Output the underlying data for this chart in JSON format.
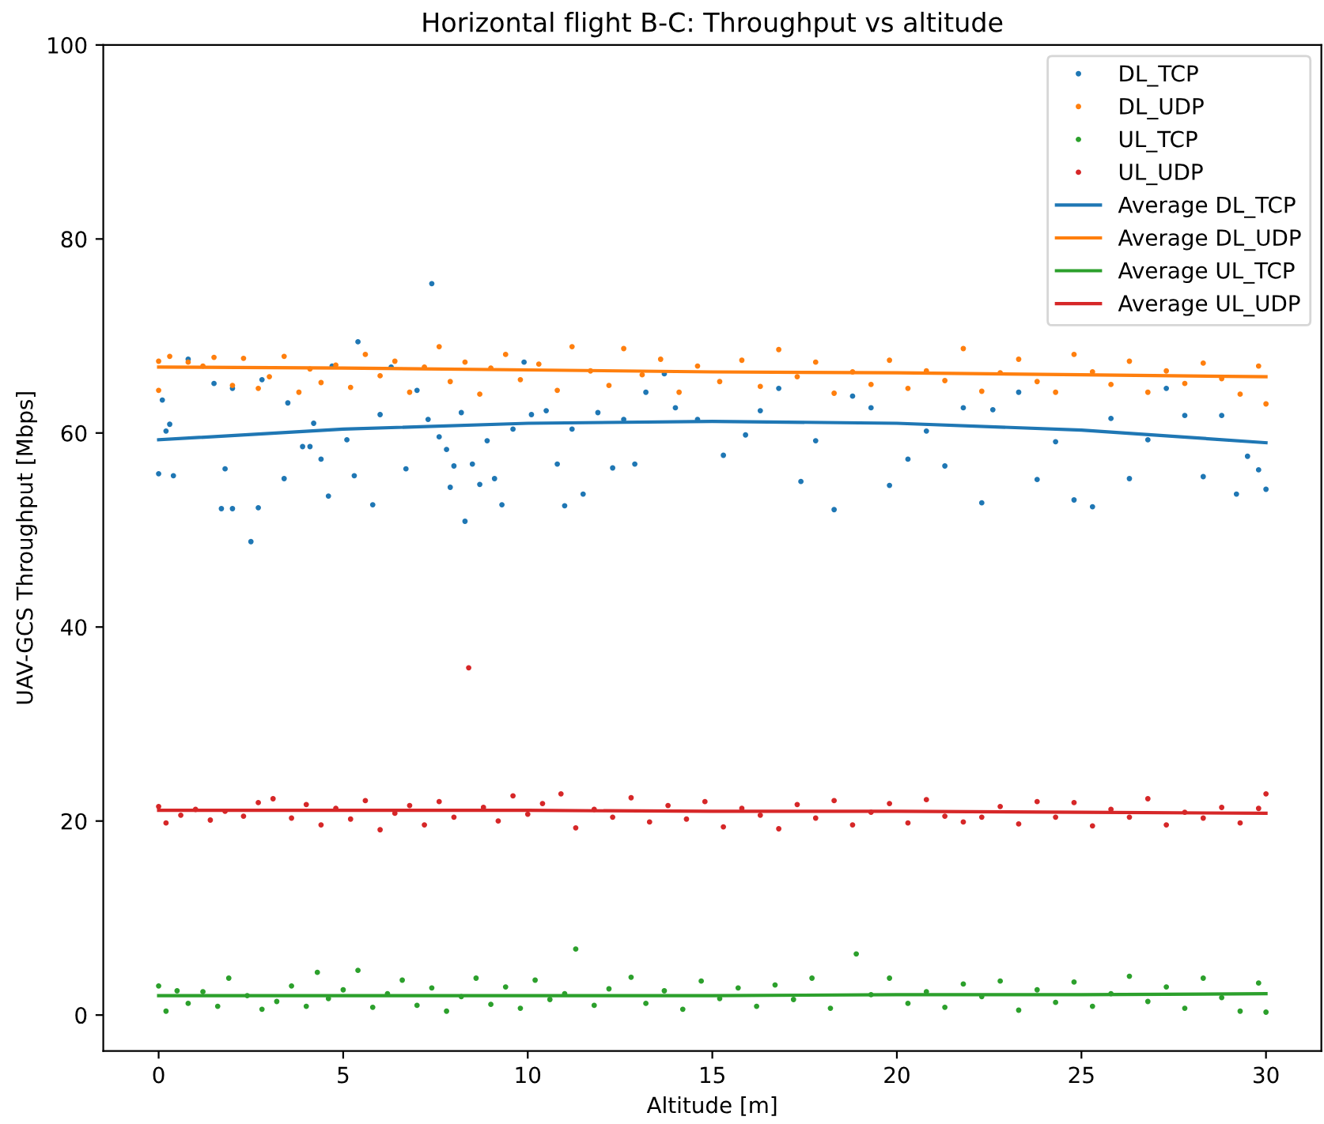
{
  "chart_data": {
    "type": "scatter",
    "title": "Horizontal flight B-C: Throughput vs altitude",
    "xlabel": "Altitude [m]",
    "ylabel": "UAV-GCS Throughput [Mbps]",
    "xlim": [
      -1.5,
      31.5
    ],
    "ylim": [
      -3.7,
      100
    ],
    "xticks": [
      0,
      5,
      10,
      15,
      20,
      25,
      30
    ],
    "yticks": [
      0,
      20,
      40,
      60,
      80,
      100
    ],
    "legend": "top right",
    "grid": false,
    "series": [
      {
        "name": "DL_TCP",
        "marker": "circle",
        "color": "#1f77b4",
        "x": [
          0,
          0.1,
          0.2,
          0.3,
          0.4,
          0.8,
          1.5,
          1.7,
          1.8,
          2.0,
          2.0,
          2.5,
          2.7,
          2.8,
          3.4,
          3.5,
          3.9,
          4.1,
          4.2,
          4.4,
          4.6,
          4.7,
          5.1,
          5.3,
          5.4,
          5.8,
          6.0,
          6.3,
          6.7,
          7.0,
          7.3,
          7.4,
          7.6,
          7.8,
          7.9,
          8.0,
          8.2,
          8.3,
          8.5,
          8.7,
          8.9,
          9.1,
          9.3,
          9.6,
          9.9,
          10.1,
          10.5,
          10.8,
          11.0,
          11.2,
          11.5,
          11.9,
          12.3,
          12.6,
          12.9,
          13.2,
          13.7,
          14.0,
          14.6,
          15.3,
          15.9,
          16.3,
          16.8,
          17.4,
          17.8,
          18.3,
          18.8,
          19.3,
          19.8,
          20.3,
          20.8,
          21.3,
          21.8,
          22.3,
          22.6,
          23.3,
          23.8,
          24.3,
          24.8,
          25.3,
          25.8,
          26.3,
          26.8,
          27.3,
          27.8,
          28.3,
          28.8,
          29.2,
          29.5,
          29.8,
          30.0
        ],
        "values": [
          55.8,
          63.4,
          60.2,
          60.9,
          55.6,
          67.6,
          65.1,
          52.2,
          56.3,
          52.2,
          64.6,
          48.8,
          52.3,
          65.5,
          55.3,
          63.1,
          58.6,
          58.6,
          61.0,
          57.3,
          53.5,
          66.9,
          59.3,
          55.6,
          69.4,
          52.6,
          61.9,
          66.8,
          56.3,
          64.4,
          61.4,
          75.4,
          59.6,
          58.3,
          54.4,
          56.6,
          62.1,
          50.9,
          56.8,
          54.7,
          59.2,
          55.3,
          52.6,
          60.4,
          67.3,
          61.9,
          62.3,
          56.8,
          52.5,
          60.4,
          53.7,
          62.1,
          56.4,
          61.4,
          56.8,
          64.2,
          66.1,
          62.6,
          61.4,
          57.7,
          59.8,
          62.3,
          64.6,
          55.0,
          59.2,
          52.1,
          63.8,
          62.6,
          54.6,
          57.3,
          60.2,
          56.6,
          62.6,
          52.8,
          62.4,
          64.2,
          55.2,
          59.1,
          53.1,
          52.4,
          61.5,
          55.3,
          59.3,
          64.6,
          61.8,
          55.5,
          61.8,
          53.7,
          57.6,
          56.2,
          54.2
        ]
      },
      {
        "name": "DL_UDP",
        "marker": "circle",
        "color": "#ff7f0e",
        "x": [
          0,
          0,
          0.3,
          0.8,
          1.2,
          1.5,
          2.0,
          2.3,
          2.7,
          3.0,
          3.4,
          3.8,
          4.1,
          4.4,
          4.8,
          5.2,
          5.6,
          6.0,
          6.4,
          6.8,
          7.2,
          7.6,
          7.9,
          8.3,
          8.7,
          9.0,
          9.4,
          9.8,
          10.3,
          10.8,
          11.2,
          11.7,
          12.2,
          12.6,
          13.1,
          13.6,
          14.1,
          14.6,
          15.2,
          15.8,
          16.3,
          16.8,
          17.3,
          17.8,
          18.3,
          18.8,
          19.3,
          19.8,
          20.3,
          20.8,
          21.3,
          21.8,
          22.3,
          22.8,
          23.3,
          23.8,
          24.3,
          24.8,
          25.3,
          25.8,
          26.3,
          26.8,
          27.3,
          27.8,
          28.3,
          28.8,
          29.3,
          29.8,
          30.0
        ],
        "values": [
          67.4,
          64.4,
          67.9,
          67.3,
          66.9,
          67.8,
          64.9,
          67.7,
          64.6,
          65.8,
          67.9,
          64.2,
          66.6,
          65.2,
          67.0,
          64.7,
          68.1,
          65.9,
          67.4,
          64.2,
          66.8,
          68.9,
          65.3,
          67.3,
          64.0,
          66.7,
          68.1,
          65.5,
          67.1,
          64.4,
          68.9,
          66.4,
          64.9,
          68.7,
          66.0,
          67.6,
          64.2,
          66.9,
          65.3,
          67.5,
          64.8,
          68.6,
          65.8,
          67.3,
          64.1,
          66.3,
          65.0,
          67.5,
          64.6,
          66.4,
          65.4,
          68.7,
          64.3,
          66.2,
          67.6,
          65.3,
          64.2,
          68.1,
          66.3,
          65.0,
          67.4,
          64.2,
          66.4,
          65.1,
          67.2,
          65.6,
          64.0,
          66.9,
          63.0
        ]
      },
      {
        "name": "UL_TCP",
        "marker": "circle",
        "color": "#2ca02c",
        "x": [
          0,
          0.2,
          0.5,
          0.8,
          1.2,
          1.6,
          1.9,
          2.4,
          2.8,
          3.2,
          3.6,
          4.0,
          4.3,
          4.6,
          5.0,
          5.4,
          5.8,
          6.2,
          6.6,
          7.0,
          7.4,
          7.8,
          8.2,
          8.6,
          9.0,
          9.4,
          9.8,
          10.2,
          10.6,
          11.0,
          11.3,
          11.8,
          12.2,
          12.8,
          13.2,
          13.7,
          14.2,
          14.7,
          15.2,
          15.7,
          16.2,
          16.7,
          17.2,
          17.7,
          18.2,
          18.9,
          19.3,
          19.8,
          20.3,
          20.8,
          21.3,
          21.8,
          22.3,
          22.8,
          23.3,
          23.8,
          24.3,
          24.8,
          25.3,
          25.8,
          26.3,
          26.8,
          27.3,
          27.8,
          28.3,
          28.8,
          29.3,
          29.8,
          30.0
        ],
        "values": [
          3.0,
          0.4,
          2.5,
          1.2,
          2.4,
          0.9,
          3.8,
          2.0,
          0.6,
          1.4,
          3.0,
          0.9,
          4.4,
          1.7,
          2.6,
          4.6,
          0.8,
          2.2,
          3.6,
          1.0,
          2.8,
          0.4,
          1.9,
          3.8,
          1.1,
          2.9,
          0.7,
          3.6,
          1.6,
          2.2,
          6.8,
          1.0,
          2.7,
          3.9,
          1.2,
          2.5,
          0.6,
          3.5,
          1.7,
          2.8,
          0.9,
          3.1,
          1.6,
          3.8,
          0.7,
          6.3,
          2.1,
          3.8,
          1.2,
          2.4,
          0.8,
          3.2,
          1.9,
          3.5,
          0.5,
          2.6,
          1.3,
          3.4,
          0.9,
          2.2,
          4.0,
          1.4,
          2.9,
          0.7,
          3.8,
          1.8,
          0.4,
          3.3,
          0.3
        ]
      },
      {
        "name": "UL_UDP",
        "marker": "circle",
        "color": "#d62728",
        "x": [
          0,
          0.2,
          0.6,
          1.0,
          1.4,
          1.8,
          2.3,
          2.7,
          3.1,
          3.6,
          4.0,
          4.4,
          4.8,
          5.2,
          5.6,
          6.0,
          6.4,
          6.8,
          7.2,
          7.6,
          8.0,
          8.4,
          8.8,
          9.2,
          9.6,
          10.0,
          10.4,
          10.9,
          11.3,
          11.8,
          12.3,
          12.8,
          13.3,
          13.8,
          14.3,
          14.8,
          15.3,
          15.8,
          16.3,
          16.8,
          17.3,
          17.8,
          18.3,
          18.8,
          19.3,
          19.8,
          20.3,
          20.8,
          21.3,
          21.8,
          22.3,
          22.8,
          23.3,
          23.8,
          24.3,
          24.8,
          25.3,
          25.8,
          26.3,
          26.8,
          27.3,
          27.8,
          28.3,
          28.8,
          29.3,
          29.8,
          30.0
        ],
        "values": [
          21.5,
          19.8,
          20.6,
          21.2,
          20.1,
          21.0,
          20.5,
          21.9,
          22.3,
          20.3,
          21.7,
          19.6,
          21.3,
          20.2,
          22.1,
          19.1,
          20.8,
          21.6,
          19.6,
          22.0,
          20.4,
          35.8,
          21.4,
          20.0,
          22.6,
          20.7,
          21.8,
          22.8,
          19.3,
          21.2,
          20.4,
          22.4,
          19.9,
          21.6,
          20.2,
          22.0,
          19.4,
          21.3,
          20.6,
          19.2,
          21.7,
          20.3,
          22.1,
          19.6,
          20.9,
          21.8,
          19.8,
          22.2,
          20.5,
          19.9,
          20.4,
          21.5,
          19.7,
          22.0,
          20.4,
          21.9,
          19.5,
          21.2,
          20.4,
          22.3,
          19.6,
          20.9,
          20.3,
          21.4,
          19.8,
          21.3,
          22.8
        ]
      },
      {
        "name": "Average DL_TCP",
        "type": "line",
        "marker": "none",
        "color": "#1f77b4",
        "x": [
          0,
          5,
          10,
          15,
          20,
          25,
          30
        ],
        "values": [
          59.3,
          60.4,
          61.0,
          61.2,
          61.0,
          60.3,
          59.0
        ]
      },
      {
        "name": "Average DL_UDP",
        "type": "line",
        "marker": "none",
        "color": "#ff7f0e",
        "x": [
          0,
          5,
          10,
          15,
          20,
          25,
          30
        ],
        "values": [
          66.8,
          66.7,
          66.5,
          66.3,
          66.2,
          66.0,
          65.8
        ]
      },
      {
        "name": "Average UL_TCP",
        "type": "line",
        "marker": "none",
        "color": "#2ca02c",
        "x": [
          0,
          5,
          10,
          15,
          20,
          25,
          30
        ],
        "values": [
          2.0,
          2.0,
          2.0,
          2.0,
          2.1,
          2.1,
          2.2
        ]
      },
      {
        "name": "Average UL_UDP",
        "type": "line",
        "marker": "none",
        "color": "#d62728",
        "x": [
          0,
          5,
          10,
          15,
          20,
          25,
          30
        ],
        "values": [
          21.1,
          21.1,
          21.1,
          21.0,
          21.0,
          20.9,
          20.8
        ]
      }
    ]
  }
}
